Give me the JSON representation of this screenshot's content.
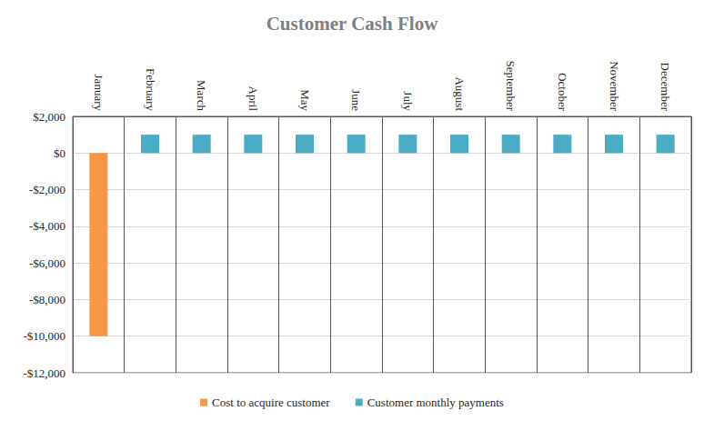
{
  "chart_data": {
    "type": "bar",
    "title": "Customer Cash Flow",
    "categories": [
      "January",
      "February",
      "March",
      "April",
      "May",
      "June",
      "July",
      "August",
      "September",
      "October",
      "November",
      "December"
    ],
    "series": [
      {
        "name": "Cost to acquire customer",
        "color": "#f79646",
        "values": [
          -10000,
          null,
          null,
          null,
          null,
          null,
          null,
          null,
          null,
          null,
          null,
          null
        ]
      },
      {
        "name": "Customer monthly payments",
        "color": "#4bacc6",
        "values": [
          null,
          1000,
          1000,
          1000,
          1000,
          1000,
          1000,
          1000,
          1000,
          1000,
          1000,
          1000
        ]
      }
    ],
    "ylim": [
      -12000,
      2000
    ],
    "yticks": [
      {
        "value": -12000,
        "label": "-$12,000"
      },
      {
        "value": -10000,
        "label": "-$10,000"
      },
      {
        "value": -8000,
        "label": "-$8,000"
      },
      {
        "value": -6000,
        "label": "-$6,000"
      },
      {
        "value": -4000,
        "label": "-$4,000"
      },
      {
        "value": -2000,
        "label": "-$2,000"
      },
      {
        "value": 0,
        "label": "$0"
      },
      {
        "value": 2000,
        "label": "$2,000"
      }
    ],
    "grid": true,
    "legend": "bottom",
    "data_labels": false
  }
}
